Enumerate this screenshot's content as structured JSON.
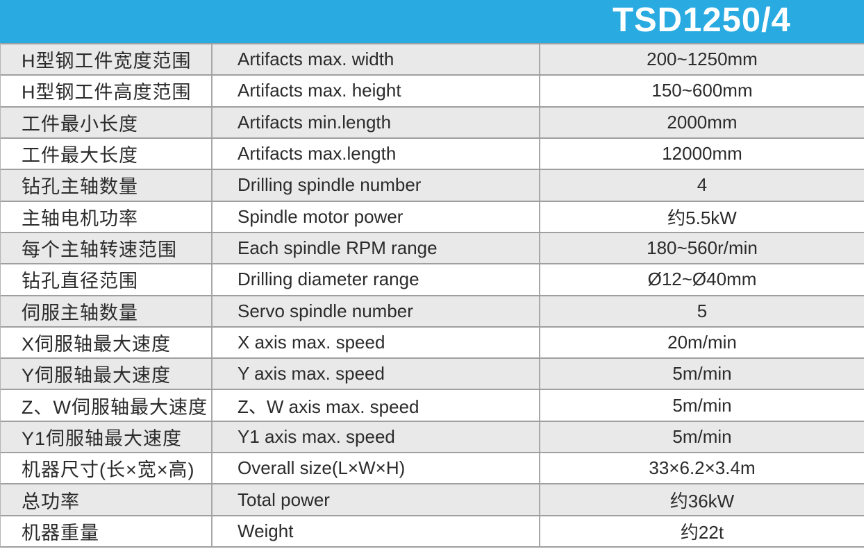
{
  "header": {
    "title": "TSD1250/4"
  },
  "colors": {
    "header_bg": "#29abe2",
    "header_text": "#ffffff",
    "row_bg": "#ffffff",
    "row_alt_bg": "#e9e9e9",
    "border": "#9f9f9f",
    "text": "#2b2b2b"
  },
  "table": {
    "columns": [
      "label_cn",
      "label_en",
      "value"
    ],
    "rows": [
      {
        "cn": "H型钢工件宽度范围",
        "en": "Artifacts max. width",
        "value": "200~1250mm"
      },
      {
        "cn": "H型钢工件高度范围",
        "en": "Artifacts max. height",
        "value": "150~600mm"
      },
      {
        "cn": "工件最小长度",
        "en": "Artifacts min.length",
        "value": "2000mm"
      },
      {
        "cn": "工件最大长度",
        "en": "Artifacts max.length",
        "value": "12000mm"
      },
      {
        "cn": "钻孔主轴数量",
        "en": "Drilling spindle number",
        "value": "4"
      },
      {
        "cn": "主轴电机功率",
        "en": "Spindle motor power",
        "value": "约5.5kW"
      },
      {
        "cn": "每个主轴转速范围",
        "en": "Each spindle RPM range",
        "value": "180~560r/min"
      },
      {
        "cn": "钻孔直径范围",
        "en": "Drilling diameter range",
        "value": "Ø12~Ø40mm"
      },
      {
        "cn": "伺服主轴数量",
        "en": "Servo spindle number",
        "value": "5"
      },
      {
        "cn": "X伺服轴最大速度",
        "en": "X axis max. speed",
        "value": "20m/min"
      },
      {
        "cn": "Y伺服轴最大速度",
        "en": "Y axis max. speed",
        "value": "5m/min"
      },
      {
        "cn": "Z、W伺服轴最大速度",
        "en": "Z、W axis max. speed",
        "value": "5m/min"
      },
      {
        "cn": "Y1伺服轴最大速度",
        "en": "Y1 axis max. speed",
        "value": "5m/min"
      },
      {
        "cn": "机器尺寸(长×宽×高)",
        "en": "Overall size(L×W×H)",
        "value": "33×6.2×3.4m"
      },
      {
        "cn": "总功率",
        "en": "Total power",
        "value": "约36kW"
      },
      {
        "cn": "机器重量",
        "en": "Weight",
        "value": "约22t"
      }
    ]
  }
}
